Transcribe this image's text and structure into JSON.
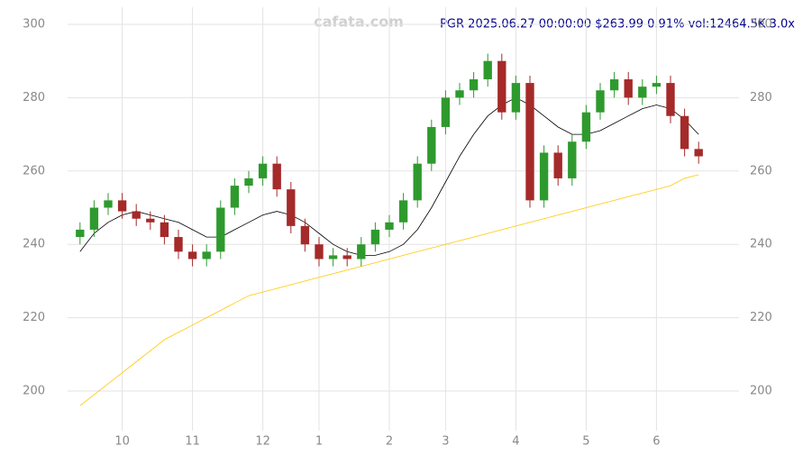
{
  "chart_data": {
    "type": "candlestick",
    "watermark": "cafata.com",
    "title": "PGR 2025.06.27 00:00:00 $263.99 0.91% vol:12464.5K 3.0x",
    "categories": [
      null,
      null,
      null,
      "10",
      null,
      null,
      null,
      null,
      "11",
      null,
      null,
      null,
      null,
      "12",
      null,
      null,
      null,
      "1",
      null,
      null,
      null,
      null,
      "2",
      null,
      null,
      null,
      "3",
      null,
      null,
      null,
      null,
      "4",
      null,
      null,
      null,
      null,
      "5",
      null,
      null,
      null,
      null,
      "6",
      null,
      null,
      null
    ],
    "open": [
      242,
      244,
      250,
      252,
      249,
      247,
      246,
      242,
      238,
      236,
      238,
      250,
      256,
      258,
      262,
      255,
      245,
      240,
      236,
      237,
      236,
      240,
      244,
      246,
      252,
      262,
      272,
      280,
      282,
      285,
      290,
      276,
      284,
      252,
      265,
      258,
      268,
      276,
      282,
      285,
      280,
      283,
      284,
      275,
      266
    ],
    "high": [
      246,
      252,
      254,
      254,
      251,
      249,
      248,
      244,
      240,
      240,
      252,
      258,
      260,
      264,
      264,
      257,
      247,
      242,
      239,
      239,
      242,
      246,
      248,
      254,
      264,
      274,
      282,
      284,
      287,
      292,
      292,
      286,
      286,
      267,
      267,
      270,
      278,
      284,
      287,
      287,
      285,
      286,
      286,
      277,
      268
    ],
    "low": [
      240,
      242,
      248,
      247,
      245,
      244,
      240,
      236,
      234,
      234,
      236,
      248,
      254,
      256,
      253,
      243,
      238,
      234,
      234,
      234,
      234,
      238,
      242,
      244,
      250,
      260,
      270,
      278,
      280,
      283,
      274,
      274,
      250,
      250,
      256,
      256,
      266,
      274,
      280,
      278,
      278,
      281,
      273,
      264,
      262
    ],
    "close": [
      244,
      250,
      252,
      249,
      247,
      246,
      242,
      238,
      236,
      238,
      250,
      256,
      258,
      262,
      255,
      245,
      240,
      236,
      237,
      236,
      240,
      244,
      246,
      252,
      262,
      272,
      280,
      282,
      285,
      290,
      276,
      284,
      252,
      265,
      258,
      268,
      276,
      282,
      285,
      280,
      283,
      284,
      275,
      266,
      264
    ],
    "up_color": "#2e9a2e",
    "down_color": "#a52a2a",
    "lines": [
      {
        "color": "#000000",
        "values": [
          238,
          243,
          246,
          248,
          249,
          248,
          247,
          246,
          244,
          242,
          242,
          244,
          246,
          248,
          249,
          248,
          246,
          243,
          240,
          238,
          237,
          237,
          238,
          240,
          244,
          250,
          257,
          264,
          270,
          275,
          278,
          280,
          278,
          275,
          272,
          270,
          270,
          271,
          273,
          275,
          277,
          278,
          277,
          274,
          270
        ]
      },
      {
        "color": "#ffc800",
        "values": [
          196,
          199,
          202,
          205,
          208,
          211,
          214,
          216,
          218,
          220,
          222,
          224,
          226,
          227,
          228,
          229,
          230,
          231,
          232,
          233,
          234,
          235,
          236,
          237,
          238,
          239,
          240,
          241,
          242,
          243,
          244,
          245,
          246,
          247,
          248,
          249,
          250,
          251,
          252,
          253,
          254,
          255,
          256,
          258,
          259
        ]
      }
    ],
    "ylim": [
      189,
      304
    ],
    "yticks": [
      200,
      220,
      240,
      260,
      280,
      300
    ],
    "grid": true
  }
}
